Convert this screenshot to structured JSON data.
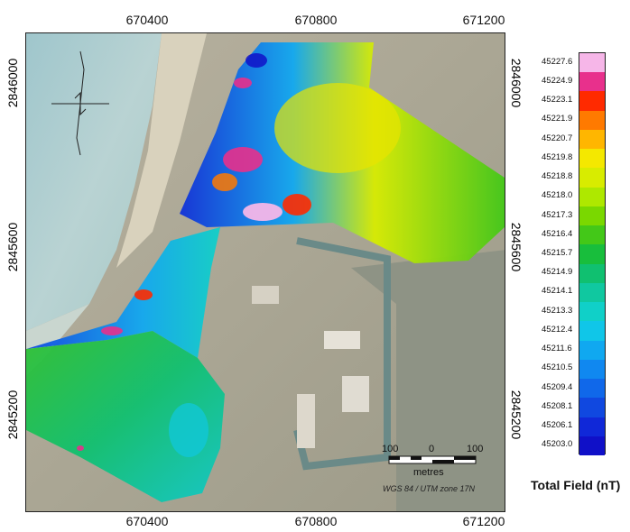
{
  "axes": {
    "x_ticks_top": [
      "670400",
      "670800",
      "671200"
    ],
    "x_ticks_bottom": [
      "670400",
      "670800",
      "671200"
    ],
    "y_ticks_left": [
      "2846000",
      "2845600",
      "2845200"
    ],
    "y_ticks_right": [
      "2846000",
      "2845600",
      "2845200"
    ]
  },
  "legend": {
    "title": "Total Field (nT)",
    "values": [
      "45227.6",
      "45224.9",
      "45223.1",
      "45221.9",
      "45220.7",
      "45219.8",
      "45218.8",
      "45218.0",
      "45217.3",
      "45216.4",
      "45215.7",
      "45214.9",
      "45214.1",
      "45213.3",
      "45212.4",
      "45211.6",
      "45210.5",
      "45209.4",
      "45208.1",
      "45206.1",
      "45203.0"
    ],
    "colors": [
      "#f6b6e8",
      "#e8308c",
      "#ff2a00",
      "#ff7a00",
      "#ffb600",
      "#f4e800",
      "#d8ec00",
      "#aee800",
      "#7ad800",
      "#43c818",
      "#18be3c",
      "#10c070",
      "#10c8a0",
      "#10d0c8",
      "#10c6e8",
      "#10a8f0",
      "#1088f0",
      "#1068ea",
      "#1048e0",
      "#1028d8",
      "#1010c8"
    ]
  },
  "scale_bar": {
    "labels": [
      "100",
      "0",
      "100"
    ],
    "units": "metres"
  },
  "projection": "WGS 84 / UTM zone 17N",
  "north_arrow": "north-arrow-icon"
}
